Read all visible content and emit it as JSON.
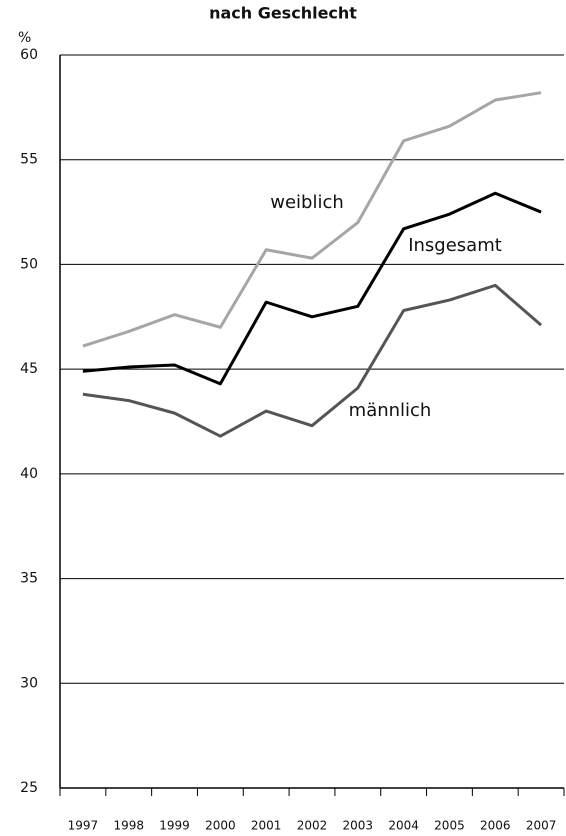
{
  "chart_data": {
    "type": "line",
    "title": "nach Geschlecht",
    "y_label": "%",
    "categories": [
      "1997",
      "1998",
      "1999",
      "2000",
      "2001",
      "2002",
      "2003",
      "2004",
      "2005",
      "2006",
      "2007"
    ],
    "series": [
      {
        "name": "weiblich",
        "color": "#a6a6a6",
        "values": [
          46.1,
          46.8,
          47.6,
          47.0,
          50.7,
          50.3,
          52.0,
          55.9,
          56.6,
          57.85,
          58.2
        ]
      },
      {
        "name": "Insgesamt",
        "color": "#000000",
        "values": [
          44.9,
          45.1,
          45.2,
          44.3,
          48.2,
          47.5,
          48.0,
          51.7,
          52.4,
          53.4,
          52.5
        ]
      },
      {
        "name": "männlich",
        "color": "#555555",
        "values": [
          43.8,
          43.5,
          42.9,
          41.8,
          43.0,
          42.3,
          44.1,
          47.8,
          48.3,
          49.0,
          47.1
        ]
      }
    ],
    "ylim": [
      25,
      60
    ],
    "yticks": [
      25,
      30,
      35,
      40,
      45,
      50,
      55,
      60
    ],
    "grid": true
  }
}
